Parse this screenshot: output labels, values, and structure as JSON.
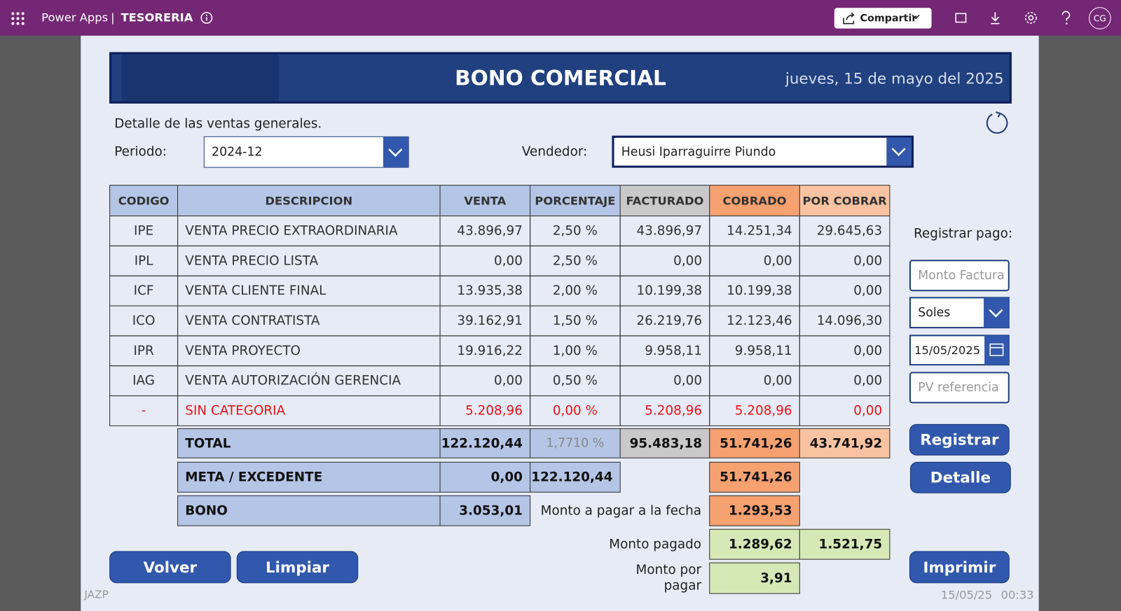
{
  "topbar": {
    "app": "Power Apps",
    "separator": "|",
    "env": "TESORERIA",
    "share": "Compartir",
    "user": "CG"
  },
  "header": {
    "title": "BONO COMERCIAL",
    "date": "jueves, 15 de mayo del 2025"
  },
  "filters": {
    "subtitle": "Detalle de las ventas generales.",
    "period_label": "Periodo:",
    "period": "2024-12",
    "seller_label": "Vendedor:",
    "seller": "Heusi Iparraguirre Piundo"
  },
  "table": {
    "headers": [
      "CODIGO",
      "DESCRIPCION",
      "VENTA",
      "PORCENTAJE",
      "FACTURADO",
      "COBRADO",
      "POR COBRAR"
    ],
    "rows": [
      [
        "IPE",
        "VENTA PRECIO EXTRAORDINARIA",
        "43.896,97",
        "2,50 %",
        "43.896,97",
        "14.251,34",
        "29.645,63"
      ],
      [
        "IPL",
        "VENTA PRECIO LISTA",
        "0,00",
        "2,50 %",
        "0,00",
        "0,00",
        "0,00"
      ],
      [
        "ICF",
        "VENTA CLIENTE FINAL",
        "13.935,38",
        "2,00 %",
        "10.199,38",
        "10.199,38",
        "0,00"
      ],
      [
        "ICO",
        "VENTA CONTRATISTA",
        "39.162,91",
        "1,50 %",
        "26.219,76",
        "12.123,46",
        "14.096,30"
      ],
      [
        "IPR",
        "VENTA PROYECTO",
        "19.916,22",
        "1,00 %",
        "9.958,11",
        "9.958,11",
        "0,00"
      ],
      [
        "IAG",
        "VENTA AUTORIZACIÓN GERENCIA",
        "0,00",
        "0,50 %",
        "0,00",
        "0,00",
        "0,00"
      ],
      [
        "-",
        "SIN CATEGORIA",
        "5.208,96",
        "0,00 %",
        "5.208,96",
        "5.208,96",
        "0,00"
      ]
    ]
  },
  "summary": {
    "total": {
      "label": "TOTAL",
      "venta": "122.120,44",
      "porcentaje": "1,7710 %",
      "facturado": "95.483,18",
      "cobrado": "51.741,26",
      "por_cobrar": "43.741,92"
    },
    "meta": {
      "label": "META / EXCEDENTE",
      "venta": "0,00",
      "porcentaje": "122.120,44",
      "cobrado": "51.741,26"
    },
    "bono": {
      "label": "BONO",
      "venta": "3.053,01",
      "note": "Monto a pagar a la fecha",
      "cobrado": "1.293,53"
    },
    "paid": {
      "label": "Monto pagado",
      "cobrado": "1.289,62",
      "por_cobrar": "1.521,75"
    },
    "pending": {
      "label": "Monto por pagar",
      "cobrado": "3,91"
    }
  },
  "payment": {
    "title": "Registrar pago:",
    "amount_placeholder": "Monto Factura",
    "currency": "Soles",
    "date": "15/05/2025",
    "reference_placeholder": "PV referencia",
    "register": "Registrar",
    "detail": "Detalle",
    "print": "Imprimir"
  },
  "actions": {
    "back": "Volver",
    "clear": "Limpiar"
  },
  "footer": {
    "user": "JAZP",
    "date": "15/05/25",
    "time": "00:33"
  }
}
